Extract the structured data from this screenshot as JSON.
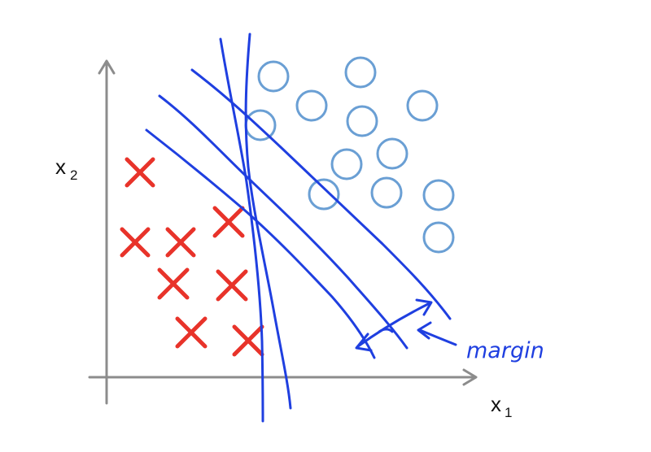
{
  "diagram": {
    "x_axis_label": "x",
    "x_axis_subscript": "1",
    "y_axis_label": "x",
    "y_axis_subscript": "2",
    "annotation": "margin",
    "colors": {
      "axis": "#8c8c8c",
      "cross": "#e8332a",
      "circle": "#6a9fd4",
      "line": "#1f3fe0",
      "text": "#111111"
    },
    "negative_class_marker": "x-mark-icon",
    "positive_class_marker": "circle-icon"
  }
}
